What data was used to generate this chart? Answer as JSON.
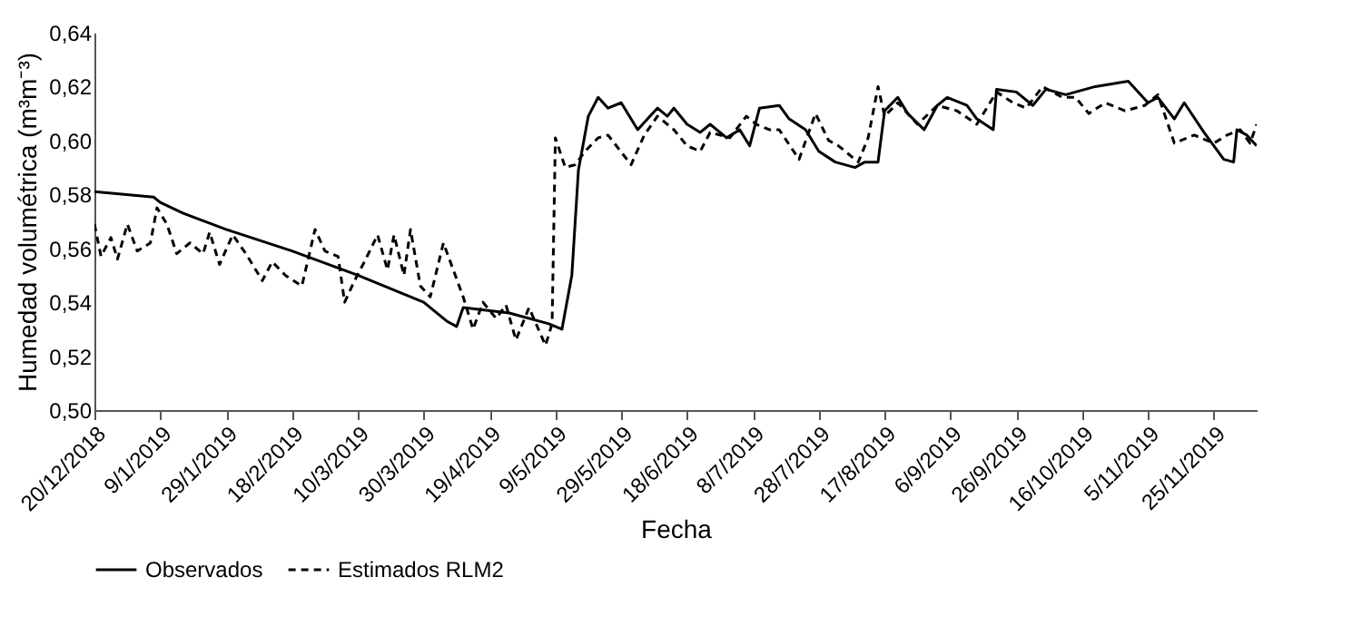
{
  "chart_data": {
    "type": "line",
    "xlabel": "Fecha",
    "ylabel": "Humedad volumétrica (m³m⁻³)",
    "xlim": [
      "2018-12-20",
      "2019-12-08"
    ],
    "xticks": [
      {
        "value": "2018-12-20",
        "label": "20/12/2018"
      },
      {
        "value": "2019-01-09",
        "label": "9/1/2019"
      },
      {
        "value": "2019-01-29",
        "label": "29/1/2019"
      },
      {
        "value": "2019-02-18",
        "label": "18/2/2019"
      },
      {
        "value": "2019-03-10",
        "label": "10/3/2019"
      },
      {
        "value": "2019-03-30",
        "label": "30/3/2019"
      },
      {
        "value": "2019-04-19",
        "label": "19/4/2019"
      },
      {
        "value": "2019-05-09",
        "label": "9/5/2019"
      },
      {
        "value": "2019-05-29",
        "label": "29/5/2019"
      },
      {
        "value": "2019-06-18",
        "label": "18/6/2019"
      },
      {
        "value": "2019-07-08",
        "label": "8/7/2019"
      },
      {
        "value": "2019-07-28",
        "label": "28/7/2019"
      },
      {
        "value": "2019-08-17",
        "label": "17/8/2019"
      },
      {
        "value": "2019-09-06",
        "label": "6/9/2019"
      },
      {
        "value": "2019-09-26",
        "label": "26/9/2019"
      },
      {
        "value": "2019-10-16",
        "label": "16/10/2019"
      },
      {
        "value": "2019-11-05",
        "label": "5/11/2019"
      },
      {
        "value": "2019-11-25",
        "label": "25/11/2019"
      }
    ],
    "ylim": [
      0.5,
      0.64
    ],
    "yticks": [
      {
        "value": 0.5,
        "label": "0,50"
      },
      {
        "value": 0.52,
        "label": "0,52"
      },
      {
        "value": 0.54,
        "label": "0,54"
      },
      {
        "value": 0.56,
        "label": "0,56"
      },
      {
        "value": 0.58,
        "label": "0,58"
      },
      {
        "value": 0.6,
        "label": "0,60"
      },
      {
        "value": 0.62,
        "label": "0,62"
      },
      {
        "value": 0.64,
        "label": "0,64"
      }
    ],
    "legend": "bottom",
    "series": [
      {
        "name": "Observados",
        "color": "#000000",
        "line_style": "solid",
        "x": [
          "2018-12-20",
          "2019-01-07",
          "2019-01-09",
          "2019-01-16",
          "2019-01-29",
          "2019-02-18",
          "2019-03-10",
          "2019-03-30",
          "2019-04-06",
          "2019-04-09",
          "2019-04-11",
          "2019-04-25",
          "2019-05-07",
          "2019-05-11",
          "2019-05-14",
          "2019-05-16",
          "2019-05-19",
          "2019-05-22",
          "2019-05-25",
          "2019-05-29",
          "2019-06-03",
          "2019-06-06",
          "2019-06-09",
          "2019-06-12",
          "2019-06-14",
          "2019-06-18",
          "2019-06-22",
          "2019-06-25",
          "2019-06-30",
          "2019-07-04",
          "2019-07-07",
          "2019-07-10",
          "2019-07-16",
          "2019-07-19",
          "2019-07-24",
          "2019-07-28",
          "2019-08-02",
          "2019-08-08",
          "2019-08-11",
          "2019-08-15",
          "2019-08-17",
          "2019-08-21",
          "2019-08-24",
          "2019-08-29",
          "2019-09-02",
          "2019-09-05",
          "2019-09-11",
          "2019-09-14",
          "2019-09-19",
          "2019-09-20",
          "2019-09-26",
          "2019-10-01",
          "2019-10-05",
          "2019-10-11",
          "2019-10-20",
          "2019-10-30",
          "2019-11-05",
          "2019-11-08",
          "2019-11-13",
          "2019-11-16",
          "2019-11-22",
          "2019-11-28",
          "2019-12-01",
          "2019-12-02",
          "2019-12-05",
          "2019-12-08"
        ],
        "values": [
          0.581,
          0.579,
          0.577,
          0.573,
          0.567,
          0.559,
          0.55,
          0.54,
          0.533,
          0.531,
          0.538,
          0.536,
          0.532,
          0.53,
          0.55,
          0.589,
          0.609,
          0.616,
          0.612,
          0.614,
          0.604,
          0.608,
          0.612,
          0.609,
          0.612,
          0.606,
          0.603,
          0.606,
          0.601,
          0.604,
          0.598,
          0.612,
          0.613,
          0.608,
          0.604,
          0.596,
          0.592,
          0.59,
          0.592,
          0.592,
          0.611,
          0.616,
          0.61,
          0.604,
          0.613,
          0.616,
          0.613,
          0.608,
          0.604,
          0.619,
          0.618,
          0.613,
          0.619,
          0.617,
          0.62,
          0.622,
          0.614,
          0.616,
          0.608,
          0.614,
          0.603,
          0.593,
          0.592,
          0.604,
          0.602,
          0.598
        ]
      },
      {
        "name": "Estimados RLM2",
        "color": "#000000",
        "line_style": "dashed",
        "x": [
          "2018-12-20",
          "2018-12-22",
          "2018-12-25",
          "2018-12-27",
          "2018-12-30",
          "2019-01-02",
          "2019-01-06",
          "2019-01-08",
          "2019-01-11",
          "2019-01-14",
          "2019-01-18",
          "2019-01-22",
          "2019-01-24",
          "2019-01-27",
          "2019-01-31",
          "2019-02-04",
          "2019-02-09",
          "2019-02-12",
          "2019-02-16",
          "2019-02-21",
          "2019-02-25",
          "2019-02-28",
          "2019-03-04",
          "2019-03-06",
          "2019-03-09",
          "2019-03-12",
          "2019-03-16",
          "2019-03-19",
          "2019-03-21",
          "2019-03-24",
          "2019-03-26",
          "2019-03-29",
          "2019-04-01",
          "2019-04-05",
          "2019-04-08",
          "2019-04-11",
          "2019-04-14",
          "2019-04-17",
          "2019-04-21",
          "2019-04-24",
          "2019-04-27",
          "2019-05-01",
          "2019-05-06",
          "2019-05-08",
          "2019-05-09",
          "2019-05-12",
          "2019-05-15",
          "2019-05-18",
          "2019-05-22",
          "2019-05-25",
          "2019-06-01",
          "2019-06-05",
          "2019-06-09",
          "2019-06-14",
          "2019-06-18",
          "2019-06-22",
          "2019-06-25",
          "2019-07-01",
          "2019-07-06",
          "2019-07-09",
          "2019-07-13",
          "2019-07-16",
          "2019-07-22",
          "2019-07-27",
          "2019-07-31",
          "2019-08-03",
          "2019-08-09",
          "2019-08-12",
          "2019-08-15",
          "2019-08-17",
          "2019-08-21",
          "2019-08-27",
          "2019-09-02",
          "2019-09-08",
          "2019-09-14",
          "2019-09-20",
          "2019-09-25",
          "2019-09-29",
          "2019-10-04",
          "2019-10-10",
          "2019-10-14",
          "2019-10-18",
          "2019-10-23",
          "2019-10-29",
          "2019-11-04",
          "2019-11-08",
          "2019-11-13",
          "2019-11-19",
          "2019-11-25",
          "2019-11-29",
          "2019-12-03",
          "2019-12-06",
          "2019-12-08"
        ],
        "values": [
          0.569,
          0.557,
          0.564,
          0.556,
          0.569,
          0.559,
          0.562,
          0.575,
          0.569,
          0.558,
          0.562,
          0.558,
          0.566,
          0.554,
          0.565,
          0.558,
          0.548,
          0.555,
          0.55,
          0.546,
          0.567,
          0.559,
          0.557,
          0.54,
          0.548,
          0.555,
          0.565,
          0.552,
          0.565,
          0.55,
          0.567,
          0.546,
          0.542,
          0.562,
          0.552,
          0.542,
          0.53,
          0.54,
          0.534,
          0.539,
          0.526,
          0.538,
          0.524,
          0.532,
          0.601,
          0.59,
          0.591,
          0.596,
          0.601,
          0.602,
          0.591,
          0.602,
          0.609,
          0.604,
          0.598,
          0.596,
          0.603,
          0.601,
          0.609,
          0.606,
          0.604,
          0.604,
          0.593,
          0.61,
          0.6,
          0.598,
          0.592,
          0.601,
          0.62,
          0.609,
          0.614,
          0.606,
          0.613,
          0.611,
          0.606,
          0.618,
          0.614,
          0.612,
          0.62,
          0.616,
          0.616,
          0.61,
          0.614,
          0.611,
          0.613,
          0.617,
          0.599,
          0.602,
          0.599,
          0.602,
          0.604,
          0.599,
          0.606
        ]
      }
    ]
  }
}
